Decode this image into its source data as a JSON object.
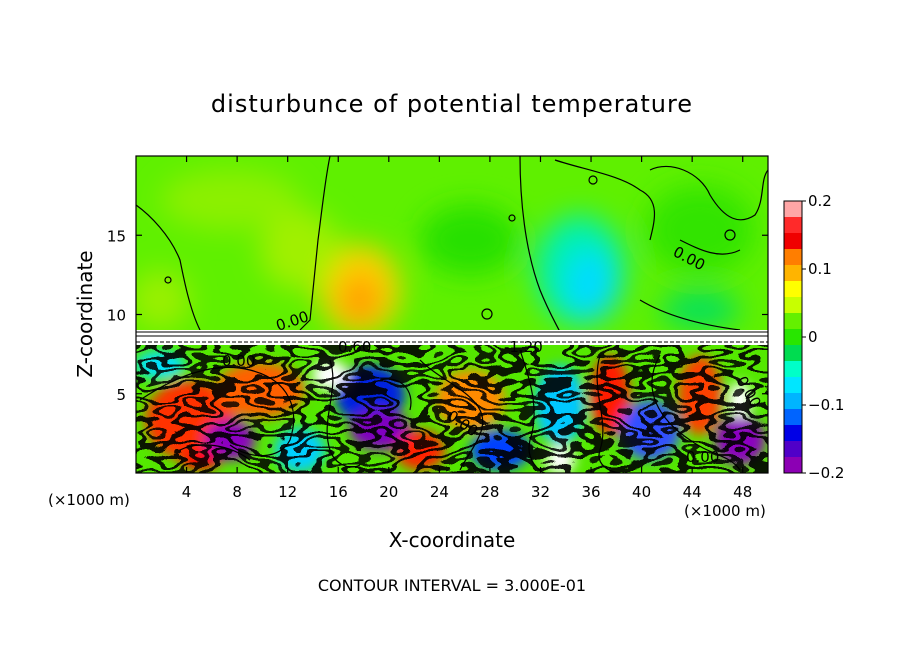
{
  "chart_data": {
    "type": "heatmap",
    "title": "disturbunce of potential temperature",
    "xlabel": "X-coordinate",
    "ylabel": "Z-coordinate",
    "x_unit": "(×1000 m)",
    "y_unit": "(×1000 m)",
    "xlim": [
      0,
      50
    ],
    "ylim": [
      0,
      20
    ],
    "x_ticks": [
      4,
      8,
      12,
      16,
      20,
      24,
      28,
      32,
      36,
      40,
      44,
      48
    ],
    "y_ticks": [
      5,
      10,
      15
    ],
    "colorbar": {
      "range": [
        -0.2,
        0.2
      ],
      "tick_values": [
        0.2,
        0.1,
        0,
        -0.1,
        -0.2
      ],
      "tick_labels": [
        "0.2",
        "0.1",
        "0",
        "−0.1",
        "−0.2"
      ],
      "colors": [
        "#ffa6a6",
        "#ff2a2a",
        "#f00000",
        "#ff7e00",
        "#ffb400",
        "#ffff00",
        "#c8ff00",
        "#64f000",
        "#28e600",
        "#00dc50",
        "#00ffc8",
        "#00e6ff",
        "#00b4ff",
        "#0064ff",
        "#0000e6",
        "#5000c8",
        "#8c00b4"
      ]
    },
    "contour_labels": [
      "0.00",
      "0.60",
      "-1.20",
      "0.00",
      "0.00",
      "0.00",
      "0.00",
      "0.00"
    ],
    "annotation": "CONTOUR INTERVAL = 3.000E-01"
  }
}
